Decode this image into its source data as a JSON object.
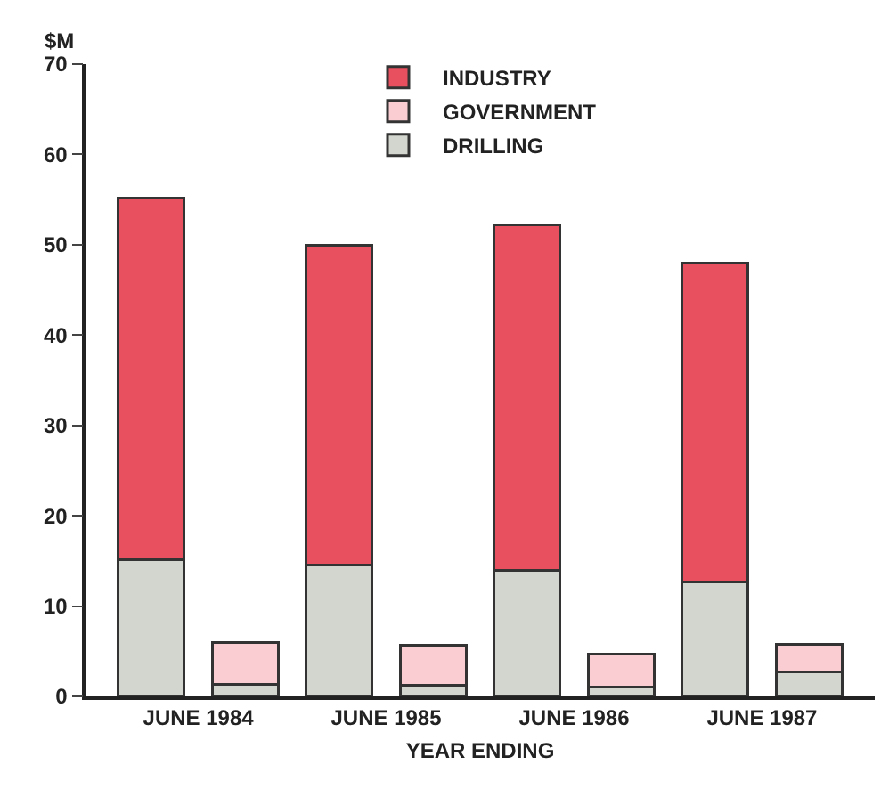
{
  "chart_data": {
    "type": "bar",
    "stacked": true,
    "ylabel": "$M",
    "xlabel": "YEAR ENDING",
    "categories": [
      "JUNE 1984",
      null,
      "JUNE 1985",
      null,
      "JUNE 1986",
      null,
      "JUNE 1987",
      null
    ],
    "series": [
      {
        "name": "DRILLING",
        "color": "#d3d6ce",
        "values": [
          15.1,
          1.3,
          14.5,
          1.2,
          14.0,
          1.0,
          12.7,
          2.7
        ]
      },
      {
        "name": "GOVERNMENT",
        "color": "#f9cdd1",
        "values": [
          null,
          4.7,
          null,
          4.5,
          null,
          3.7,
          null,
          3.1
        ]
      },
      {
        "name": "INDUSTRY",
        "color": "#e9505f",
        "values": [
          40.1,
          null,
          35.4,
          null,
          38.2,
          null,
          35.3,
          null
        ]
      }
    ],
    "ylim": [
      0,
      70
    ],
    "yticks": [
      0,
      10,
      20,
      30,
      40,
      50,
      60,
      70
    ],
    "legend": "top"
  }
}
